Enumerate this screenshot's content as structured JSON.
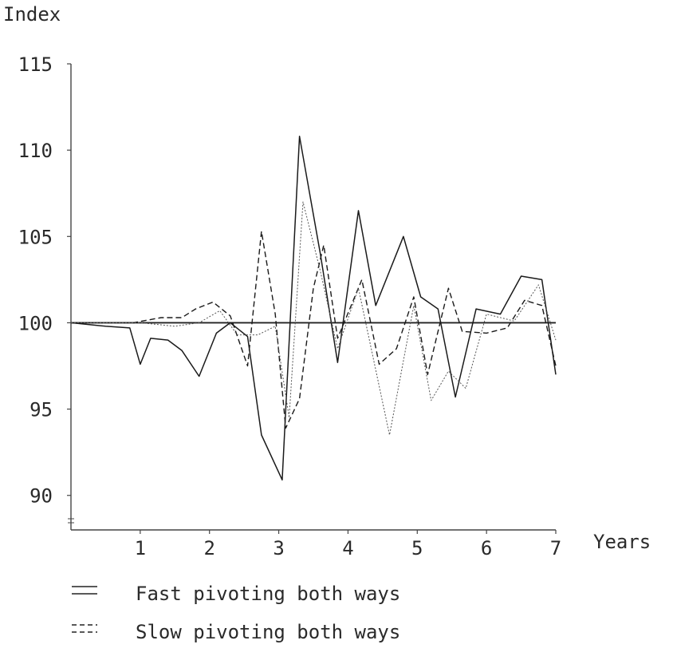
{
  "chart_data": {
    "type": "line",
    "ylabel": "Index",
    "xlabel": "Years",
    "xlim": [
      0,
      7
    ],
    "ylim": [
      88,
      115
    ],
    "xticks": [
      "1",
      "2",
      "3",
      "4",
      "5",
      "6",
      "7"
    ],
    "yticks": [
      "90",
      "95",
      "100",
      "105",
      "110",
      "115"
    ],
    "baseline": 100,
    "series": [
      {
        "name": "Fast pivoting both ways",
        "style": "solid",
        "x": [
          0,
          0.5,
          0.85,
          1.0,
          1.15,
          1.4,
          1.6,
          1.85,
          2.1,
          2.3,
          2.55,
          2.75,
          3.05,
          3.3,
          3.6,
          3.85,
          4.15,
          4.4,
          4.8,
          5.05,
          5.3,
          5.55,
          5.85,
          6.2,
          6.5,
          6.8,
          7.0
        ],
        "values": [
          100,
          99.8,
          99.7,
          97.6,
          99.1,
          99.0,
          98.4,
          96.9,
          99.4,
          100.0,
          99.2,
          93.5,
          90.9,
          110.8,
          104.0,
          97.7,
          106.5,
          101.0,
          105.0,
          101.5,
          100.8,
          95.7,
          100.8,
          100.5,
          102.7,
          102.5,
          97.0
        ]
      },
      {
        "name": "Slow pivoting both ways",
        "style": "dashed",
        "x": [
          0,
          0.9,
          1.3,
          1.6,
          1.8,
          2.05,
          2.3,
          2.55,
          2.75,
          2.95,
          3.1,
          3.3,
          3.5,
          3.65,
          3.85,
          4.2,
          4.45,
          4.7,
          4.95,
          5.15,
          5.3,
          5.45,
          5.65,
          6.0,
          6.3,
          6.55,
          6.8,
          7.0
        ],
        "values": [
          100,
          100.0,
          100.3,
          100.3,
          100.8,
          101.2,
          100.4,
          97.5,
          105.3,
          100.5,
          93.9,
          95.6,
          102.0,
          104.5,
          99.1,
          102.5,
          97.6,
          98.5,
          101.5,
          97.0,
          99.5,
          102.0,
          99.5,
          99.4,
          99.7,
          101.3,
          101.0,
          97.5
        ]
      },
      {
        "name": "",
        "style": "dotted",
        "x": [
          0,
          1.0,
          1.5,
          1.85,
          2.15,
          2.4,
          2.7,
          2.95,
          3.15,
          3.35,
          3.6,
          3.85,
          4.15,
          4.6,
          4.95,
          5.2,
          5.45,
          5.7,
          6.0,
          6.4,
          6.75,
          7.0
        ],
        "values": [
          100,
          100.0,
          99.8,
          100.0,
          100.7,
          99.3,
          99.3,
          99.8,
          94.5,
          107.0,
          103.0,
          98.5,
          102.0,
          93.5,
          101.0,
          95.5,
          97.2,
          96.2,
          100.5,
          100.1,
          102.2,
          99.0
        ]
      }
    ],
    "legend": [
      {
        "label": "Fast pivoting both ways",
        "style": "solid"
      },
      {
        "label": "Slow pivoting both ways",
        "style": "dashed"
      }
    ]
  }
}
